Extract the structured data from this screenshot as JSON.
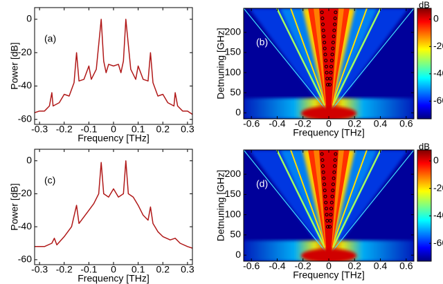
{
  "chart_data": [
    {
      "type": "line",
      "panel_label": "(a)",
      "xlabel": "Frequency [THz]",
      "ylabel": "Power [dB]",
      "color": "#b01818",
      "x": [
        -0.32,
        -0.3,
        -0.28,
        -0.26,
        -0.25,
        -0.245,
        -0.22,
        -0.2,
        -0.18,
        -0.16,
        -0.15,
        -0.14,
        -0.12,
        -0.1,
        -0.09,
        -0.07,
        -0.05,
        -0.04,
        -0.03,
        -0.02,
        0,
        0.02,
        0.03,
        0.04,
        0.05,
        0.07,
        0.09,
        0.1,
        0.12,
        0.14,
        0.15,
        0.16,
        0.18,
        0.2,
        0.22,
        0.245,
        0.25,
        0.26,
        0.28,
        0.3,
        0.32
      ],
      "values": [
        -56,
        -55,
        -55,
        -52,
        -44,
        -52,
        -50,
        -45,
        -46,
        -38,
        -20,
        -37,
        -36,
        -28,
        -36,
        -30,
        0,
        -25,
        -32,
        -27,
        -28,
        -27,
        -32,
        -25,
        0,
        -30,
        -36,
        -28,
        -36,
        -37,
        -20,
        -38,
        -46,
        -45,
        -50,
        -52,
        -44,
        -52,
        -55,
        -55,
        -57
      ],
      "xlim": [
        -0.32,
        0.32
      ],
      "ylim": [
        -63,
        7
      ],
      "xticks": [
        -0.3,
        -0.2,
        -0.1,
        0,
        0.1,
        0.2,
        0.3
      ],
      "yticks": [
        0,
        -20,
        -40,
        -60
      ]
    },
    {
      "type": "heatmap",
      "panel_label": "(b)",
      "xlabel": "Frequency [THz]",
      "ylabel": "Detnuning [GHz]",
      "xlim": [
        -0.66,
        0.66
      ],
      "ylim": [
        -15,
        260
      ],
      "xticks": [
        -0.6,
        -0.4,
        -0.2,
        0,
        0.2,
        0.4,
        0.6
      ],
      "yticks": [
        0,
        50,
        100,
        150,
        200
      ],
      "colorbar": {
        "label": "dB",
        "lim": [
          -73,
          8
        ],
        "ticks": [
          0,
          -20,
          -40,
          -60
        ]
      },
      "markers": {
        "x": [
          -0.008,
          -0.012,
          -0.016,
          -0.019,
          -0.023,
          -0.027,
          -0.031,
          -0.034,
          -0.038,
          -0.042,
          -0.046,
          -0.049,
          -0.053,
          0.008,
          0.012,
          0.016,
          0.019,
          0.023,
          0.027,
          0.031,
          0.034,
          0.038,
          0.042,
          0.046,
          0.049,
          0.053
        ],
        "y": [
          70,
          85,
          100,
          115,
          130,
          145,
          160,
          175,
          190,
          205,
          220,
          235,
          250,
          70,
          85,
          100,
          115,
          130,
          145,
          160,
          175,
          190,
          205,
          220,
          235,
          250
        ]
      }
    },
    {
      "type": "line",
      "panel_label": "(c)",
      "xlabel": "Frequency [THz]",
      "ylabel": "Power [dB]",
      "color": "#b01818",
      "x": [
        -0.32,
        -0.28,
        -0.25,
        -0.24,
        -0.23,
        -0.2,
        -0.17,
        -0.15,
        -0.14,
        -0.12,
        -0.1,
        -0.08,
        -0.06,
        -0.05,
        -0.04,
        -0.02,
        0,
        0.02,
        0.04,
        0.05,
        0.06,
        0.08,
        0.1,
        0.12,
        0.14,
        0.15,
        0.16,
        0.18,
        0.2,
        0.23,
        0.25,
        0.27,
        0.3,
        0.32
      ],
      "values": [
        -52,
        -52,
        -50,
        -47,
        -51,
        -46,
        -40,
        -27,
        -38,
        -34,
        -30,
        -26,
        -20,
        -1,
        -20,
        -22,
        -17,
        -22,
        -20,
        0,
        -20,
        -22,
        -27,
        -33,
        -36,
        -28,
        -38,
        -43,
        -46,
        -48,
        -47,
        -50,
        -52,
        -53
      ],
      "xlim": [
        -0.32,
        0.32
      ],
      "ylim": [
        -63,
        7
      ],
      "xticks": [
        -0.3,
        -0.2,
        -0.1,
        0,
        0.1,
        0.2,
        0.3
      ],
      "yticks": [
        0,
        -20,
        -40,
        -60
      ]
    },
    {
      "type": "heatmap",
      "panel_label": "(d)",
      "xlabel": "Frequency [THz]",
      "ylabel": "Detnuning [GHz]",
      "xlim": [
        -0.66,
        0.66
      ],
      "ylim": [
        -15,
        260
      ],
      "xticks": [
        -0.6,
        -0.4,
        -0.2,
        0,
        0.2,
        0.4,
        0.6
      ],
      "yticks": [
        0,
        50,
        100,
        150,
        200
      ],
      "colorbar": {
        "label": "dB",
        "lim": [
          -73,
          8
        ],
        "ticks": [
          0,
          -20,
          -40,
          -60
        ]
      },
      "markers": {
        "x": [
          -0.008,
          -0.012,
          -0.016,
          -0.019,
          -0.023,
          -0.027,
          -0.031,
          -0.034,
          -0.038,
          -0.042,
          -0.046,
          -0.049,
          -0.053,
          0.008,
          0.012,
          0.016,
          0.019,
          0.023,
          0.027,
          0.031,
          0.034,
          0.038,
          0.042,
          0.046,
          0.049,
          0.053
        ],
        "y": [
          70,
          85,
          100,
          115,
          130,
          145,
          160,
          175,
          190,
          205,
          220,
          235,
          250,
          70,
          85,
          100,
          115,
          130,
          145,
          160,
          175,
          190,
          205,
          220,
          235,
          250
        ]
      }
    }
  ]
}
